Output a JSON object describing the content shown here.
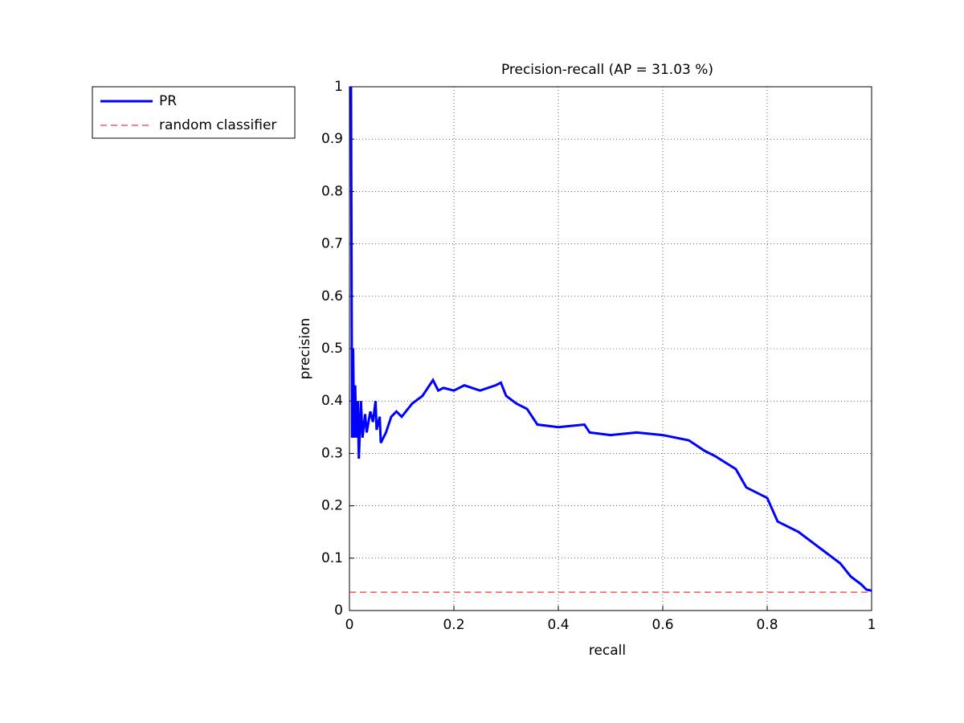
{
  "chart_data": {
    "type": "line",
    "title": "Precision-recall (AP = 31.03 %)",
    "x_label": "recall",
    "y_label": "precision",
    "xlim": [
      0,
      1
    ],
    "ylim": [
      0,
      1
    ],
    "xticks": [
      0,
      0.2,
      0.4,
      0.6,
      0.8,
      1
    ],
    "yticks": [
      0,
      0.1,
      0.2,
      0.3,
      0.4,
      0.5,
      0.6,
      0.7,
      0.8,
      0.9,
      1
    ],
    "grid": true,
    "legend_position": "outside-upper-left",
    "series": [
      {
        "name": "PR",
        "color": "#0000ff",
        "linestyle": "solid",
        "x": [
          0.003,
          0.005,
          0.007,
          0.009,
          0.011,
          0.013,
          0.016,
          0.018,
          0.022,
          0.025,
          0.03,
          0.033,
          0.04,
          0.045,
          0.05,
          0.052,
          0.058,
          0.06,
          0.07,
          0.08,
          0.09,
          0.1,
          0.12,
          0.14,
          0.16,
          0.17,
          0.18,
          0.2,
          0.22,
          0.25,
          0.28,
          0.29,
          0.3,
          0.32,
          0.34,
          0.36,
          0.4,
          0.45,
          0.46,
          0.5,
          0.55,
          0.6,
          0.65,
          0.68,
          0.7,
          0.74,
          0.76,
          0.8,
          0.82,
          0.86,
          0.9,
          0.94,
          0.96,
          0.98,
          0.99,
          1.0
        ],
        "values": [
          1.0,
          0.33,
          0.5,
          0.33,
          0.43,
          0.33,
          0.4,
          0.29,
          0.4,
          0.33,
          0.375,
          0.34,
          0.38,
          0.36,
          0.4,
          0.345,
          0.37,
          0.32,
          0.34,
          0.37,
          0.38,
          0.37,
          0.395,
          0.41,
          0.44,
          0.42,
          0.425,
          0.42,
          0.43,
          0.42,
          0.43,
          0.435,
          0.41,
          0.395,
          0.385,
          0.355,
          0.35,
          0.355,
          0.34,
          0.335,
          0.34,
          0.335,
          0.325,
          0.305,
          0.295,
          0.27,
          0.235,
          0.215,
          0.17,
          0.15,
          0.12,
          0.09,
          0.065,
          0.05,
          0.04,
          0.038
        ]
      },
      {
        "name": "random classifier",
        "color": "#ff0000",
        "linestyle": "dashed",
        "x": [
          0,
          1
        ],
        "values": [
          0.035,
          0.035
        ]
      }
    ]
  }
}
